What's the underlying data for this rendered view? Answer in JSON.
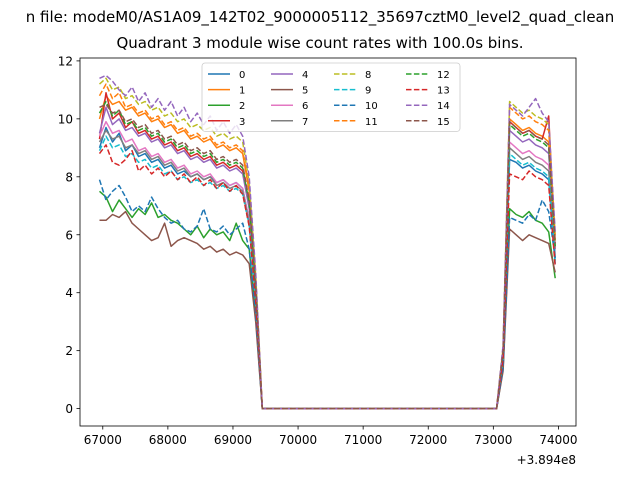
{
  "figure": {
    "suptitle": "n file: modeM0/AS1A09_142T02_9000005112_35697cztM0_level2_quad_clean",
    "title": "Quadrant 3 module wise count rates with 100.0s bins."
  },
  "chart_data": {
    "type": "line",
    "title": "Quadrant 3 module wise count rates with 100.0s bins.",
    "xlabel": "",
    "ylabel": "",
    "x_offset_label": "+3.894e8",
    "xlim": [
      66650,
      74270
    ],
    "ylim": [
      -0.6,
      12.1
    ],
    "xticks": [
      67000,
      68000,
      69000,
      70000,
      71000,
      72000,
      73000,
      74000
    ],
    "yticks": [
      0,
      2,
      4,
      6,
      8,
      10,
      12
    ],
    "grid": false,
    "legend": {
      "position": "top-center",
      "ncol": 4
    },
    "x": [
      66950,
      67050,
      67150,
      67250,
      67350,
      67450,
      67550,
      67650,
      67750,
      67850,
      67950,
      68050,
      68150,
      68250,
      68350,
      68450,
      68550,
      68650,
      68750,
      68850,
      68950,
      69050,
      69150,
      69250,
      69350,
      69450,
      69550,
      69650,
      69750,
      69850,
      69950,
      70050,
      70150,
      70250,
      70350,
      70450,
      70550,
      70650,
      70750,
      70850,
      70950,
      71050,
      71150,
      71250,
      71350,
      71450,
      71550,
      71650,
      71750,
      71850,
      71950,
      72050,
      72150,
      72250,
      72350,
      72450,
      72550,
      72650,
      72750,
      72850,
      72950,
      73050,
      73150,
      73250,
      73350,
      73450,
      73550,
      73650,
      73750,
      73850,
      73950
    ],
    "series": [
      {
        "name": "0",
        "color": "#1f77b4",
        "dash": "solid",
        "values": [
          9.0,
          9.7,
          9.2,
          9.5,
          8.9,
          9.1,
          8.7,
          8.8,
          8.5,
          8.6,
          8.3,
          8.4,
          8.1,
          8.2,
          8.0,
          8.1,
          7.9,
          8.0,
          7.8,
          7.9,
          7.7,
          7.8,
          7.6,
          6.5,
          3.8,
          0,
          0,
          0,
          0,
          0,
          0,
          0,
          0,
          0,
          0,
          0,
          0,
          0,
          0,
          0,
          0,
          0,
          0,
          0,
          0,
          0,
          0,
          0,
          0,
          0,
          0,
          0,
          0,
          0,
          0,
          0,
          0,
          0,
          0,
          0,
          0,
          0,
          1.7,
          8.6,
          8.5,
          8.3,
          8.4,
          8.2,
          8.1,
          7.9,
          5.0
        ]
      },
      {
        "name": "1",
        "color": "#ff7f0e",
        "dash": "solid",
        "values": [
          10.0,
          10.8,
          10.5,
          10.6,
          10.3,
          10.4,
          10.1,
          10.2,
          9.9,
          10.0,
          9.7,
          9.8,
          9.5,
          9.6,
          9.3,
          9.4,
          9.2,
          9.3,
          9.0,
          9.1,
          8.9,
          9.0,
          8.8,
          7.5,
          4.4,
          0,
          0,
          0,
          0,
          0,
          0,
          0,
          0,
          0,
          0,
          0,
          0,
          0,
          0,
          0,
          0,
          0,
          0,
          0,
          0,
          0,
          0,
          0,
          0,
          0,
          0,
          0,
          0,
          0,
          0,
          0,
          0,
          0,
          0,
          0,
          0,
          0,
          2.0,
          10.0,
          9.8,
          9.6,
          9.7,
          9.5,
          9.4,
          9.2,
          5.8
        ]
      },
      {
        "name": "2",
        "color": "#2ca02c",
        "dash": "solid",
        "values": [
          7.5,
          7.3,
          6.8,
          7.2,
          6.9,
          6.6,
          6.9,
          6.7,
          7.1,
          6.6,
          6.7,
          6.5,
          6.4,
          6.2,
          6.0,
          6.3,
          5.9,
          6.2,
          6.0,
          6.1,
          5.8,
          6.4,
          5.8,
          5.5,
          3.2,
          0,
          0,
          0,
          0,
          0,
          0,
          0,
          0,
          0,
          0,
          0,
          0,
          0,
          0,
          0,
          0,
          0,
          0,
          0,
          0,
          0,
          0,
          0,
          0,
          0,
          0,
          0,
          0,
          0,
          0,
          0,
          0,
          0,
          0,
          0,
          0,
          0,
          1.4,
          6.9,
          6.7,
          6.6,
          6.8,
          6.5,
          6.4,
          6.1,
          4.5
        ]
      },
      {
        "name": "3",
        "color": "#d62728",
        "dash": "solid",
        "values": [
          9.3,
          10.9,
          10.0,
          10.2,
          9.7,
          9.9,
          9.5,
          9.6,
          9.3,
          9.4,
          9.1,
          9.2,
          8.9,
          9.0,
          8.7,
          8.8,
          8.6,
          8.7,
          8.4,
          8.5,
          8.3,
          8.4,
          8.2,
          7.0,
          4.1,
          0,
          0,
          0,
          0,
          0,
          0,
          0,
          0,
          0,
          0,
          0,
          0,
          0,
          0,
          0,
          0,
          0,
          0,
          0,
          0,
          0,
          0,
          0,
          0,
          0,
          0,
          0,
          0,
          0,
          0,
          0,
          0,
          0,
          0,
          0,
          0,
          0,
          1.9,
          9.9,
          9.7,
          9.5,
          9.6,
          9.4,
          9.3,
          10.1,
          5.5
        ]
      },
      {
        "name": "4",
        "color": "#9467bd",
        "dash": "solid",
        "values": [
          9.5,
          10.4,
          9.8,
          10.0,
          9.6,
          9.7,
          9.4,
          9.5,
          9.2,
          9.3,
          9.0,
          9.1,
          8.8,
          8.9,
          8.6,
          8.7,
          8.5,
          8.6,
          8.3,
          8.4,
          8.2,
          8.3,
          8.1,
          6.9,
          4.0,
          0,
          0,
          0,
          0,
          0,
          0,
          0,
          0,
          0,
          0,
          0,
          0,
          0,
          0,
          0,
          0,
          0,
          0,
          0,
          0,
          0,
          0,
          0,
          0,
          0,
          0,
          0,
          0,
          0,
          0,
          0,
          0,
          0,
          0,
          0,
          0,
          0,
          1.9,
          9.6,
          9.4,
          9.2,
          9.3,
          9.1,
          9.0,
          8.8,
          5.5
        ]
      },
      {
        "name": "5",
        "color": "#8c564b",
        "dash": "solid",
        "values": [
          6.5,
          6.5,
          6.7,
          6.6,
          6.8,
          6.4,
          6.2,
          6.0,
          5.8,
          5.9,
          6.4,
          5.6,
          5.8,
          5.9,
          5.8,
          5.7,
          5.5,
          5.6,
          5.4,
          5.5,
          5.3,
          5.4,
          5.3,
          5.0,
          3.0,
          0,
          0,
          0,
          0,
          0,
          0,
          0,
          0,
          0,
          0,
          0,
          0,
          0,
          0,
          0,
          0,
          0,
          0,
          0,
          0,
          0,
          0,
          0,
          0,
          0,
          0,
          0,
          0,
          0,
          0,
          0,
          0,
          0,
          0,
          0,
          0,
          0,
          1.3,
          6.2,
          6.0,
          5.8,
          6.0,
          5.9,
          5.8,
          5.7,
          4.7
        ]
      },
      {
        "name": "6",
        "color": "#e377c2",
        "dash": "solid",
        "values": [
          9.4,
          9.9,
          9.5,
          9.6,
          9.2,
          9.3,
          8.9,
          9.0,
          8.7,
          8.8,
          8.5,
          8.6,
          8.3,
          8.4,
          8.1,
          8.2,
          8.0,
          8.1,
          7.8,
          7.9,
          7.7,
          7.8,
          7.6,
          6.5,
          3.8,
          0,
          0,
          0,
          0,
          0,
          0,
          0,
          0,
          0,
          0,
          0,
          0,
          0,
          0,
          0,
          0,
          0,
          0,
          0,
          0,
          0,
          0,
          0,
          0,
          0,
          0,
          0,
          0,
          0,
          0,
          0,
          0,
          0,
          0,
          0,
          0,
          0,
          1.8,
          9.2,
          9.0,
          8.8,
          8.9,
          8.7,
          8.6,
          8.4,
          5.3
        ]
      },
      {
        "name": "7",
        "color": "#7f7f7f",
        "dash": "solid",
        "values": [
          9.2,
          9.6,
          9.3,
          9.4,
          9.0,
          9.1,
          8.8,
          8.9,
          8.6,
          8.7,
          8.4,
          8.5,
          8.2,
          8.3,
          8.0,
          8.1,
          7.9,
          8.0,
          7.7,
          7.8,
          7.6,
          7.7,
          7.5,
          6.4,
          3.7,
          0,
          0,
          0,
          0,
          0,
          0,
          0,
          0,
          0,
          0,
          0,
          0,
          0,
          0,
          0,
          0,
          0,
          0,
          0,
          0,
          0,
          0,
          0,
          0,
          0,
          0,
          0,
          0,
          0,
          0,
          0,
          0,
          0,
          0,
          0,
          0,
          0,
          1.8,
          9.0,
          8.8,
          8.6,
          8.7,
          8.5,
          8.4,
          8.2,
          5.2
        ]
      },
      {
        "name": "8",
        "color": "#bcbd22",
        "dash": "dashed",
        "values": [
          11.2,
          11.4,
          11.0,
          11.1,
          10.7,
          10.8,
          10.5,
          10.6,
          10.3,
          10.4,
          10.1,
          10.2,
          9.9,
          10.0,
          9.7,
          9.8,
          9.6,
          9.7,
          9.4,
          9.5,
          9.3,
          9.4,
          9.2,
          7.8,
          4.6,
          0,
          0,
          0,
          0,
          0,
          0,
          0,
          0,
          0,
          0,
          0,
          0,
          0,
          0,
          0,
          0,
          0,
          0,
          0,
          0,
          0,
          0,
          0,
          0,
          0,
          0,
          0,
          0,
          0,
          0,
          0,
          0,
          0,
          0,
          0,
          0,
          0,
          2.1,
          10.6,
          10.4,
          10.2,
          10.3,
          10.1,
          10.0,
          9.8,
          6.0
        ]
      },
      {
        "name": "9",
        "color": "#17becf",
        "dash": "dashed",
        "values": [
          8.9,
          9.4,
          9.0,
          9.1,
          8.7,
          8.8,
          8.5,
          8.6,
          8.3,
          8.4,
          8.1,
          8.2,
          7.9,
          8.0,
          7.8,
          7.9,
          7.7,
          7.8,
          7.6,
          7.7,
          7.5,
          7.6,
          7.4,
          6.3,
          3.7,
          0,
          0,
          0,
          0,
          0,
          0,
          0,
          0,
          0,
          0,
          0,
          0,
          0,
          0,
          0,
          0,
          0,
          0,
          0,
          0,
          0,
          0,
          0,
          0,
          0,
          0,
          0,
          0,
          0,
          0,
          0,
          0,
          0,
          0,
          0,
          0,
          0,
          1.7,
          8.8,
          8.6,
          8.4,
          8.5,
          8.3,
          8.2,
          8.0,
          5.1
        ]
      },
      {
        "name": "10",
        "color": "#1f77b4",
        "dash": "dashed",
        "values": [
          7.9,
          7.2,
          7.5,
          7.7,
          7.3,
          6.8,
          7.0,
          6.8,
          7.3,
          6.9,
          6.6,
          6.4,
          6.5,
          6.2,
          6.1,
          6.3,
          6.9,
          6.2,
          6.1,
          6.3,
          6.0,
          6.2,
          6.4,
          5.5,
          3.3,
          0,
          0,
          0,
          0,
          0,
          0,
          0,
          0,
          0,
          0,
          0,
          0,
          0,
          0,
          0,
          0,
          0,
          0,
          0,
          0,
          0,
          0,
          0,
          0,
          0,
          0,
          0,
          0,
          0,
          0,
          0,
          0,
          0,
          0,
          0,
          0,
          0,
          1.4,
          6.6,
          6.5,
          6.4,
          6.7,
          6.5,
          7.2,
          6.8,
          5.2
        ]
      },
      {
        "name": "11",
        "color": "#ff7f0e",
        "dash": "dashed",
        "values": [
          10.8,
          11.2,
          10.7,
          10.9,
          10.4,
          10.5,
          10.2,
          10.3,
          10.0,
          10.1,
          9.8,
          9.9,
          9.6,
          9.7,
          9.4,
          9.5,
          9.3,
          9.4,
          9.1,
          9.2,
          9.0,
          9.1,
          8.9,
          7.6,
          4.5,
          0,
          0,
          0,
          0,
          0,
          0,
          0,
          0,
          0,
          0,
          0,
          0,
          0,
          0,
          0,
          0,
          0,
          0,
          0,
          0,
          0,
          0,
          0,
          0,
          0,
          0,
          0,
          0,
          0,
          0,
          0,
          0,
          0,
          0,
          0,
          0,
          0,
          2.1,
          10.4,
          10.2,
          10.0,
          10.1,
          9.9,
          9.8,
          9.6,
          5.8
        ]
      },
      {
        "name": "12",
        "color": "#2ca02c",
        "dash": "dashed",
        "values": [
          10.2,
          10.6,
          10.1,
          10.3,
          9.8,
          9.9,
          9.6,
          9.7,
          9.4,
          9.5,
          9.2,
          9.3,
          9.0,
          9.1,
          8.8,
          8.9,
          8.7,
          8.8,
          8.5,
          8.6,
          8.4,
          8.5,
          8.3,
          7.1,
          4.2,
          0,
          0,
          0,
          0,
          0,
          0,
          0,
          0,
          0,
          0,
          0,
          0,
          0,
          0,
          0,
          0,
          0,
          0,
          0,
          0,
          0,
          0,
          0,
          0,
          0,
          0,
          0,
          0,
          0,
          0,
          0,
          0,
          0,
          0,
          0,
          0,
          0,
          1.9,
          9.8,
          9.6,
          9.4,
          9.5,
          9.3,
          9.2,
          9.0,
          5.6
        ]
      },
      {
        "name": "13",
        "color": "#d62728",
        "dash": "dashed",
        "values": [
          8.8,
          9.1,
          8.5,
          8.4,
          8.6,
          8.9,
          8.2,
          8.4,
          8.1,
          8.3,
          8.0,
          8.2,
          7.9,
          8.1,
          7.8,
          8.0,
          7.7,
          7.9,
          7.6,
          7.8,
          7.5,
          7.7,
          7.4,
          6.3,
          3.7,
          0,
          0,
          0,
          0,
          0,
          0,
          0,
          0,
          0,
          0,
          0,
          0,
          0,
          0,
          0,
          0,
          0,
          0,
          0,
          0,
          0,
          0,
          0,
          0,
          0,
          0,
          0,
          0,
          0,
          0,
          0,
          0,
          0,
          0,
          0,
          0,
          0,
          1.7,
          8.1,
          8.0,
          7.9,
          8.2,
          8.0,
          7.9,
          7.7,
          4.9
        ]
      },
      {
        "name": "14",
        "color": "#9467bd",
        "dash": "dashed",
        "values": [
          11.4,
          11.5,
          11.3,
          11.0,
          10.8,
          11.1,
          10.6,
          10.9,
          10.4,
          10.7,
          10.3,
          10.6,
          10.1,
          10.4,
          9.9,
          10.2,
          9.8,
          10.1,
          9.6,
          9.9,
          9.5,
          9.8,
          9.4,
          8.0,
          4.7,
          0,
          0,
          0,
          0,
          0,
          0,
          0,
          0,
          0,
          0,
          0,
          0,
          0,
          0,
          0,
          0,
          0,
          0,
          0,
          0,
          0,
          0,
          0,
          0,
          0,
          0,
          0,
          0,
          0,
          0,
          0,
          0,
          0,
          0,
          0,
          0,
          0,
          2.2,
          10.5,
          10.3,
          10.1,
          10.4,
          10.7,
          10.2,
          9.9,
          6.1
        ]
      },
      {
        "name": "15",
        "color": "#8c564b",
        "dash": "dashed",
        "values": [
          10.4,
          10.5,
          10.2,
          10.3,
          9.9,
          10.0,
          9.7,
          9.8,
          9.5,
          9.6,
          9.3,
          9.4,
          9.1,
          9.2,
          8.9,
          9.0,
          8.8,
          8.9,
          8.6,
          8.7,
          8.5,
          8.6,
          8.4,
          7.2,
          4.2,
          0,
          0,
          0,
          0,
          0,
          0,
          0,
          0,
          0,
          0,
          0,
          0,
          0,
          0,
          0,
          0,
          0,
          0,
          0,
          0,
          0,
          0,
          0,
          0,
          0,
          0,
          0,
          0,
          0,
          0,
          0,
          0,
          0,
          0,
          0,
          0,
          0,
          2.0,
          9.9,
          9.7,
          9.5,
          9.6,
          9.4,
          9.3,
          9.1,
          5.7
        ]
      }
    ]
  }
}
